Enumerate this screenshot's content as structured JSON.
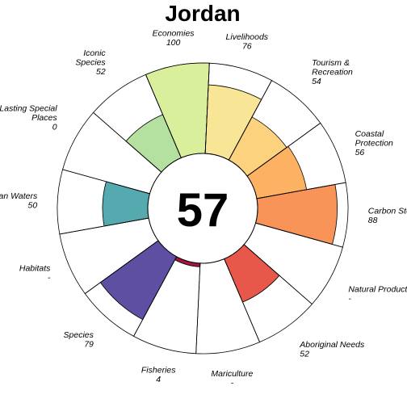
{
  "chart_data": {
    "type": "flower",
    "title": "Jordan",
    "center_score": "57",
    "max_value": 100,
    "petals": [
      {
        "name": "Natural Products",
        "lines": [
          "Natural Products"
        ],
        "score": null,
        "score_text": "-",
        "weight": 1,
        "color": null
      },
      {
        "name": "Aboriginal Needs",
        "lines": [
          "Aboriginal Needs"
        ],
        "score": 52,
        "score_text": "52",
        "weight": 1,
        "color": "#e8584a"
      },
      {
        "name": "Mariculture",
        "lines": [
          "Mariculture"
        ],
        "score": null,
        "score_text": "-",
        "weight": 1,
        "color": null
      },
      {
        "name": "Fisheries",
        "lines": [
          "Fisheries"
        ],
        "score": 4,
        "score_text": "4",
        "weight": 1,
        "color": "#a3163d"
      },
      {
        "name": "Species",
        "lines": [
          "Species"
        ],
        "score": 79,
        "score_text": "79",
        "weight": 1,
        "color": "#5e4fa2"
      },
      {
        "name": "Habitats",
        "lines": [
          "Habitats"
        ],
        "score": null,
        "score_text": "-",
        "weight": 1,
        "color": null
      },
      {
        "name": "Clean Waters",
        "lines": [
          "Clean Waters"
        ],
        "score": 50,
        "score_text": "50",
        "weight": 1,
        "color": "#55aab0"
      },
      {
        "name": "Lasting Special Places",
        "lines": [
          "Lasting Special",
          "Places"
        ],
        "score": 0,
        "score_text": "0",
        "weight": 1,
        "color": "#86cfa5"
      },
      {
        "name": "Iconic Species",
        "lines": [
          "Iconic",
          "Species"
        ],
        "score": 52,
        "score_text": "52",
        "weight": 1,
        "color": "#b4e0a0"
      },
      {
        "name": "Economies",
        "lines": [
          "Economies"
        ],
        "score": 100,
        "score_text": "100",
        "weight": 1,
        "color": "#d9ef9b"
      },
      {
        "name": "Livelihoods",
        "lines": [
          "Livelihoods"
        ],
        "score": 76,
        "score_text": "76",
        "weight": 1,
        "color": "#f8e696"
      },
      {
        "name": "Tourism & Recreation",
        "lines": [
          "Tourism &",
          "Recreation"
        ],
        "score": 54,
        "score_text": "54",
        "weight": 1,
        "color": "#fdd27f"
      },
      {
        "name": "Coastal Protection",
        "lines": [
          "Coastal",
          "Protection"
        ],
        "score": 56,
        "score_text": "56",
        "weight": 1,
        "color": "#fdb163"
      },
      {
        "name": "Carbon Storage",
        "lines": [
          "Carbon Storage"
        ],
        "score": 88,
        "score_text": "88",
        "weight": 1,
        "color": "#f89457"
      }
    ]
  }
}
